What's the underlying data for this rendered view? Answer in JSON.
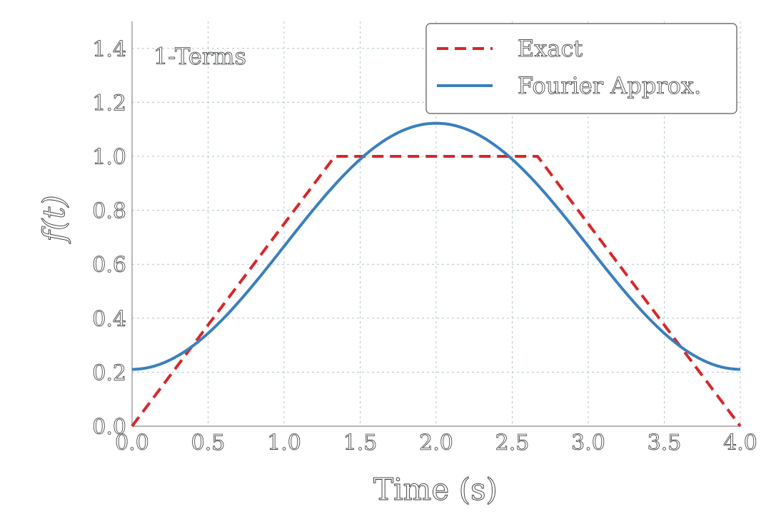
{
  "chart_data": {
    "type": "line",
    "annotation": "1-Terms",
    "xlabel": "Time (s)",
    "ylabel": "f(t)",
    "xlim": [
      0.0,
      4.0
    ],
    "ylim": [
      0.0,
      1.5
    ],
    "xticks": [
      "0.0",
      "0.5",
      "1.0",
      "1.5",
      "2.0",
      "2.5",
      "3.0",
      "3.5",
      "4.0"
    ],
    "yticks": [
      "0.0",
      "0.2",
      "0.4",
      "0.6",
      "0.8",
      "1.0",
      "1.2",
      "1.4"
    ],
    "grid": true,
    "legend_position": "top-right",
    "series": [
      {
        "name": "Exact",
        "style": "dashed",
        "color": "#d62728",
        "x": [
          0.0,
          1.3333,
          2.6667,
          4.0
        ],
        "y": [
          0.0,
          1.0,
          1.0,
          0.0
        ]
      },
      {
        "name": "Fourier Approx.",
        "style": "solid",
        "color": "#3a7fbd",
        "formula": "0.6667 - 0.4559*cos(pi*t/2)",
        "x": [
          0.0,
          0.5,
          1.0,
          1.5,
          2.0,
          2.5,
          3.0,
          3.5,
          4.0
        ],
        "y": [
          0.21,
          0.34,
          0.67,
          0.99,
          1.12,
          0.99,
          0.67,
          0.34,
          0.21
        ]
      }
    ]
  }
}
